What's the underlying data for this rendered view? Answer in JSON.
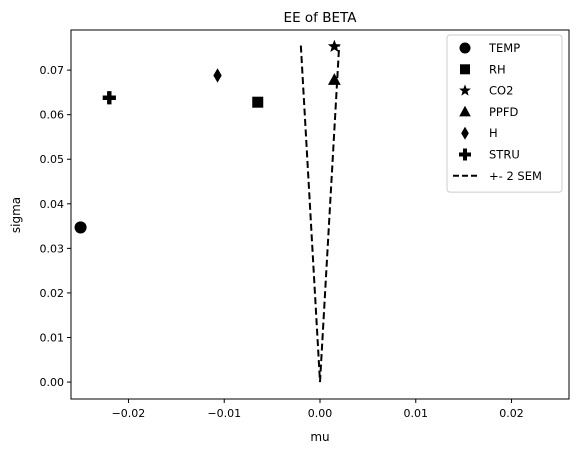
{
  "chart_data": {
    "type": "scatter",
    "title": "EE of BETA",
    "xlabel": "mu",
    "ylabel": "sigma",
    "xlim": [
      -0.026,
      0.026
    ],
    "ylim": [
      -0.0038,
      0.079
    ],
    "xticks": [
      -0.02,
      -0.01,
      0.0,
      0.01,
      0.02
    ],
    "xtick_labels": [
      "−0.02",
      "−0.01",
      "0.00",
      "0.01",
      "0.02"
    ],
    "yticks": [
      0.0,
      0.01,
      0.02,
      0.03,
      0.04,
      0.05,
      0.06,
      0.07
    ],
    "ytick_labels": [
      "0.00",
      "0.01",
      "0.02",
      "0.03",
      "0.04",
      "0.05",
      "0.06",
      "0.07"
    ],
    "grid": false,
    "legend_position": "top-right",
    "series": [
      {
        "name": "TEMP",
        "marker": "circle",
        "x": -0.025,
        "y": 0.0347
      },
      {
        "name": "RH",
        "marker": "square",
        "x": -0.0065,
        "y": 0.0628
      },
      {
        "name": "CO2",
        "marker": "star",
        "x": 0.0015,
        "y": 0.0753
      },
      {
        "name": "PPFD",
        "marker": "triangle",
        "x": 0.0015,
        "y": 0.0678
      },
      {
        "name": "H",
        "marker": "diamond",
        "x": -0.0107,
        "y": 0.0688
      },
      {
        "name": "STRU",
        "marker": "plus",
        "x": -0.022,
        "y": 0.0638
      }
    ],
    "sem_line": {
      "name": "+- 2 SEM",
      "style": "dashed",
      "left": [
        [
          -0.002,
          0.0755
        ],
        [
          0.0,
          0.0
        ]
      ],
      "right": [
        [
          0.0,
          0.0
        ],
        [
          0.002,
          0.0755
        ]
      ]
    },
    "colors": {
      "marker": "#000000",
      "line": "#000000"
    }
  }
}
